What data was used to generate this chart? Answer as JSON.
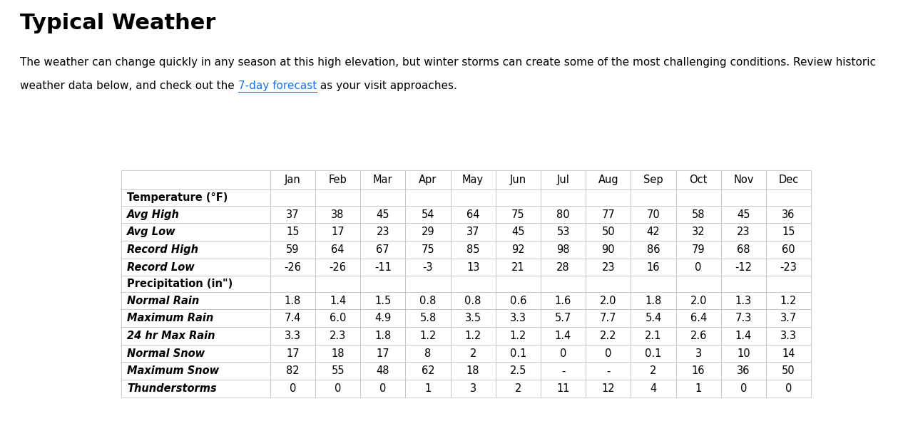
{
  "title": "Typical Weather",
  "subtitle_line1": "The weather can change quickly in any season at this high elevation, but winter storms can create some of the most challenging conditions. Review historic",
  "subtitle_line2": "weather data below, and check out the",
  "subtitle_link": "7-day forecast",
  "subtitle_end": " as your visit approaches.",
  "columns": [
    "",
    "Jan",
    "Feb",
    "Mar",
    "Apr",
    "May",
    "Jun",
    "Jul",
    "Aug",
    "Sep",
    "Oct",
    "Nov",
    "Dec"
  ],
  "rows": [
    {
      "label": "Temperature (°F)",
      "values": [],
      "bold": true,
      "italic": false,
      "header": true
    },
    {
      "label": "Avg High",
      "values": [
        "37",
        "38",
        "45",
        "54",
        "64",
        "75",
        "80",
        "77",
        "70",
        "58",
        "45",
        "36"
      ],
      "bold": true,
      "italic": true
    },
    {
      "label": "Avg Low",
      "values": [
        "15",
        "17",
        "23",
        "29",
        "37",
        "45",
        "53",
        "50",
        "42",
        "32",
        "23",
        "15"
      ],
      "bold": true,
      "italic": true
    },
    {
      "label": "Record High",
      "values": [
        "59",
        "64",
        "67",
        "75",
        "85",
        "92",
        "98",
        "90",
        "86",
        "79",
        "68",
        "60"
      ],
      "bold": true,
      "italic": true
    },
    {
      "label": "Record Low",
      "values": [
        "-26",
        "-26",
        "-11",
        "-3",
        "13",
        "21",
        "28",
        "23",
        "16",
        "0",
        "-12",
        "-23"
      ],
      "bold": true,
      "italic": true
    },
    {
      "label": "Precipitation (in\")",
      "values": [],
      "bold": true,
      "italic": false,
      "header": true
    },
    {
      "label": "Normal Rain",
      "values": [
        "1.8",
        "1.4",
        "1.5",
        "0.8",
        "0.8",
        "0.6",
        "1.6",
        "2.0",
        "1.8",
        "2.0",
        "1.3",
        "1.2"
      ],
      "bold": true,
      "italic": true
    },
    {
      "label": "Maximum Rain",
      "values": [
        "7.4",
        "6.0",
        "4.9",
        "5.8",
        "3.5",
        "3.3",
        "5.7",
        "7.7",
        "5.4",
        "6.4",
        "7.3",
        "3.7"
      ],
      "bold": true,
      "italic": true
    },
    {
      "label": "24 hr Max Rain",
      "values": [
        "3.3",
        "2.3",
        "1.8",
        "1.2",
        "1.2",
        "1.2",
        "1.4",
        "2.2",
        "2.1",
        "2.6",
        "1.4",
        "3.3"
      ],
      "bold": true,
      "italic": true
    },
    {
      "label": "Normal Snow",
      "values": [
        "17",
        "18",
        "17",
        "8",
        "2",
        "0.1",
        "0",
        "0",
        "0.1",
        "3",
        "10",
        "14"
      ],
      "bold": true,
      "italic": true
    },
    {
      "label": "Maximum Snow",
      "values": [
        "82",
        "55",
        "48",
        "62",
        "18",
        "2.5",
        "-",
        "-",
        "2",
        "16",
        "36",
        "50"
      ],
      "bold": true,
      "italic": true
    },
    {
      "label": "Thunderstorms",
      "values": [
        "0",
        "0",
        "0",
        "1",
        "3",
        "2",
        "11",
        "12",
        "4",
        "1",
        "0",
        "0"
      ],
      "bold": true,
      "italic": true
    }
  ],
  "bg_color": "#ffffff",
  "border_color": "#bbbbbb",
  "header_bg": "#f5f5f5",
  "text_color": "#000000",
  "link_color": "#1a73e8",
  "title_fontsize": 22,
  "subtitle_fontsize": 11,
  "table_fontsize": 10.5
}
